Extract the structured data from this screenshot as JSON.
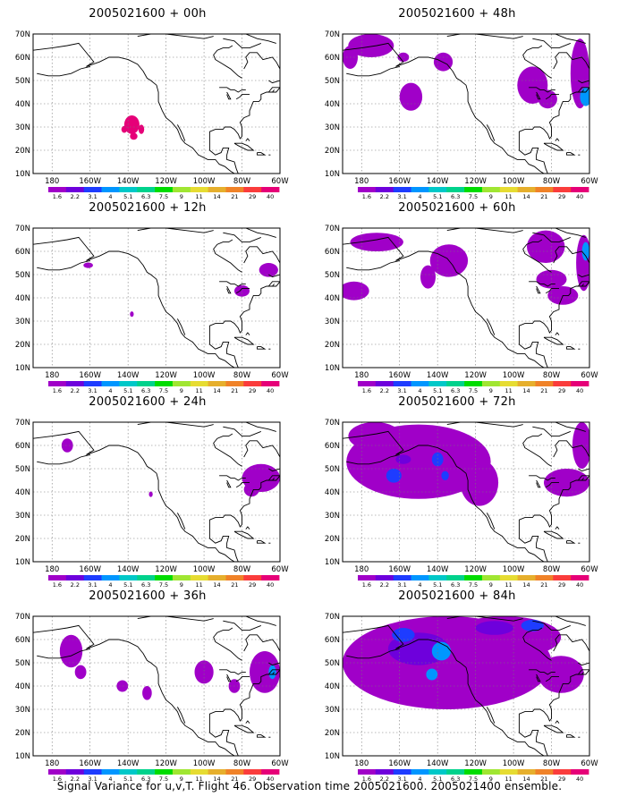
{
  "map_extent": {
    "lon_min": -190,
    "lon_max": -60,
    "lat_min": 10,
    "lat_max": 70
  },
  "lat_labels": [
    "10N",
    "20N",
    "30N",
    "40N",
    "50N",
    "60N",
    "70N"
  ],
  "lat_values": [
    10,
    20,
    30,
    40,
    50,
    60,
    70
  ],
  "lon_labels": [
    "180",
    "160W",
    "140W",
    "120W",
    "100W",
    "80W",
    "60W"
  ],
  "lon_values": [
    -180,
    -160,
    -140,
    -120,
    -100,
    -80,
    -60
  ],
  "colorbar": {
    "labels": [
      "1.6",
      "2.2",
      "3.1",
      "4",
      "5.1",
      "6.3",
      "7.5",
      "9",
      "11",
      "14",
      "21",
      "29",
      "40"
    ],
    "colors": [
      "#a000c8",
      "#6e00dc",
      "#1e3cff",
      "#0096ff",
      "#00c8c8",
      "#00d28c",
      "#00dc00",
      "#a0e632",
      "#e6dc32",
      "#e6af2d",
      "#f08228",
      "#fa3c3c",
      "#e60078"
    ]
  },
  "panels": [
    {
      "title": "2005021600 + 00h",
      "col": 0,
      "row": 0,
      "blobs": [
        {
          "lon": -138,
          "lat": 31,
          "rx": 4,
          "ry": 4,
          "lvl": 12
        },
        {
          "lon": -142,
          "lat": 29,
          "rx": 1.5,
          "ry": 1.5,
          "lvl": 12
        },
        {
          "lon": -133,
          "lat": 29,
          "rx": 1.5,
          "ry": 2,
          "lvl": 12
        },
        {
          "lon": -137,
          "lat": 26,
          "rx": 2,
          "ry": 1.5,
          "lvl": 12
        }
      ]
    },
    {
      "title": "2005021600 + 48h",
      "col": 1,
      "row": 0,
      "blobs": [
        {
          "lon": -175,
          "lat": 65,
          "rx": 12,
          "ry": 5,
          "lvl": 0
        },
        {
          "lon": -186,
          "lat": 60,
          "rx": 4,
          "ry": 5,
          "lvl": 0
        },
        {
          "lon": -158,
          "lat": 60,
          "rx": 3,
          "ry": 2,
          "lvl": 0
        },
        {
          "lon": -137,
          "lat": 58,
          "rx": 5,
          "ry": 4,
          "lvl": 0
        },
        {
          "lon": -154,
          "lat": 43,
          "rx": 6,
          "ry": 6,
          "lvl": 0
        },
        {
          "lon": -90,
          "lat": 48,
          "rx": 8,
          "ry": 8,
          "lvl": 0
        },
        {
          "lon": -82,
          "lat": 42,
          "rx": 5,
          "ry": 4,
          "lvl": 0
        },
        {
          "lon": -65,
          "lat": 53,
          "rx": 5,
          "ry": 15,
          "lvl": 0
        },
        {
          "lon": -62,
          "lat": 43,
          "rx": 3,
          "ry": 4,
          "lvl": 3
        }
      ]
    },
    {
      "title": "2005021600 + 12h",
      "col": 0,
      "row": 1,
      "blobs": [
        {
          "lon": -161,
          "lat": 54,
          "rx": 2.5,
          "ry": 1.2,
          "lvl": 0
        },
        {
          "lon": -80,
          "lat": 43,
          "rx": 4,
          "ry": 2.5,
          "lvl": 0
        },
        {
          "lon": -66,
          "lat": 52,
          "rx": 5,
          "ry": 3,
          "lvl": 0
        },
        {
          "lon": -138,
          "lat": 33,
          "rx": 1,
          "ry": 1.2,
          "lvl": 0
        }
      ]
    },
    {
      "title": "2005021600 + 60h",
      "col": 1,
      "row": 1,
      "blobs": [
        {
          "lon": -172,
          "lat": 64,
          "rx": 14,
          "ry": 4,
          "lvl": 0
        },
        {
          "lon": -134,
          "lat": 56,
          "rx": 10,
          "ry": 7,
          "lvl": 0
        },
        {
          "lon": -145,
          "lat": 49,
          "rx": 4,
          "ry": 5,
          "lvl": 0
        },
        {
          "lon": -184,
          "lat": 43,
          "rx": 8,
          "ry": 4,
          "lvl": 0
        },
        {
          "lon": -83,
          "lat": 62,
          "rx": 10,
          "ry": 7,
          "lvl": 0
        },
        {
          "lon": -80,
          "lat": 48,
          "rx": 8,
          "ry": 4,
          "lvl": 0
        },
        {
          "lon": -74,
          "lat": 41,
          "rx": 8,
          "ry": 4,
          "lvl": 0
        },
        {
          "lon": -63,
          "lat": 55,
          "rx": 4,
          "ry": 12,
          "lvl": 0
        },
        {
          "lon": -62,
          "lat": 60,
          "rx": 2,
          "ry": 4,
          "lvl": 3
        }
      ]
    },
    {
      "title": "2005021600 + 24h",
      "col": 0,
      "row": 2,
      "blobs": [
        {
          "lon": -172,
          "lat": 60,
          "rx": 3,
          "ry": 3,
          "lvl": 0
        },
        {
          "lon": -70,
          "lat": 46,
          "rx": 10,
          "ry": 6,
          "lvl": 0
        },
        {
          "lon": -75,
          "lat": 41,
          "rx": 4,
          "ry": 3,
          "lvl": 0
        },
        {
          "lon": -128,
          "lat": 39,
          "rx": 1,
          "ry": 1.2,
          "lvl": 0
        }
      ]
    },
    {
      "title": "2005021600 + 72h",
      "col": 1,
      "row": 2,
      "blobs": [
        {
          "lon": -150,
          "lat": 53,
          "rx": 38,
          "ry": 16,
          "lvl": 0
        },
        {
          "lon": -173,
          "lat": 64,
          "rx": 14,
          "ry": 6,
          "lvl": 0
        },
        {
          "lon": -118,
          "lat": 44,
          "rx": 10,
          "ry": 10,
          "lvl": 0
        },
        {
          "lon": -72,
          "lat": 44,
          "rx": 12,
          "ry": 6,
          "lvl": 0
        },
        {
          "lon": -64,
          "lat": 60,
          "rx": 5,
          "ry": 10,
          "lvl": 0
        },
        {
          "lon": -158,
          "lat": 54,
          "rx": 4,
          "ry": 2,
          "lvl": 1
        },
        {
          "lon": -140,
          "lat": 54,
          "rx": 3,
          "ry": 3,
          "lvl": 2
        },
        {
          "lon": -136,
          "lat": 47,
          "rx": 2,
          "ry": 2,
          "lvl": 2
        },
        {
          "lon": -163,
          "lat": 47,
          "rx": 4,
          "ry": 3,
          "lvl": 2
        }
      ]
    },
    {
      "title": "2005021600 + 36h",
      "col": 0,
      "row": 3,
      "blobs": [
        {
          "lon": -170,
          "lat": 55,
          "rx": 6,
          "ry": 7,
          "lvl": 0
        },
        {
          "lon": -165,
          "lat": 46,
          "rx": 3,
          "ry": 3,
          "lvl": 0
        },
        {
          "lon": -143,
          "lat": 40,
          "rx": 3,
          "ry": 2.5,
          "lvl": 0
        },
        {
          "lon": -130,
          "lat": 37,
          "rx": 2.5,
          "ry": 3,
          "lvl": 0
        },
        {
          "lon": -100,
          "lat": 46,
          "rx": 5,
          "ry": 5,
          "lvl": 0
        },
        {
          "lon": -84,
          "lat": 40,
          "rx": 3,
          "ry": 3,
          "lvl": 0
        },
        {
          "lon": -68,
          "lat": 46,
          "rx": 8,
          "ry": 9,
          "lvl": 0
        },
        {
          "lon": -64,
          "lat": 46,
          "rx": 2,
          "ry": 3,
          "lvl": 3
        }
      ]
    },
    {
      "title": "2005021600 + 84h",
      "col": 1,
      "row": 3,
      "blobs": [
        {
          "lon": -135,
          "lat": 50,
          "rx": 55,
          "ry": 20,
          "lvl": 0
        },
        {
          "lon": -105,
          "lat": 61,
          "rx": 30,
          "ry": 9,
          "lvl": 0
        },
        {
          "lon": -75,
          "lat": 45,
          "rx": 12,
          "ry": 8,
          "lvl": 0
        },
        {
          "lon": -150,
          "lat": 56,
          "rx": 16,
          "ry": 7,
          "lvl": 1
        },
        {
          "lon": -158,
          "lat": 62,
          "rx": 6,
          "ry": 3,
          "lvl": 2
        },
        {
          "lon": -138,
          "lat": 55,
          "rx": 5,
          "ry": 4,
          "lvl": 3
        },
        {
          "lon": -143,
          "lat": 45,
          "rx": 3,
          "ry": 2.5,
          "lvl": 3
        },
        {
          "lon": -110,
          "lat": 65,
          "rx": 10,
          "ry": 3,
          "lvl": 1
        },
        {
          "lon": -90,
          "lat": 66,
          "rx": 6,
          "ry": 2.5,
          "lvl": 2
        }
      ]
    }
  ],
  "caption": "Signal Variance for u,v,T. Flight 46. Observation time 2005021600. 2005021400 ensemble."
}
